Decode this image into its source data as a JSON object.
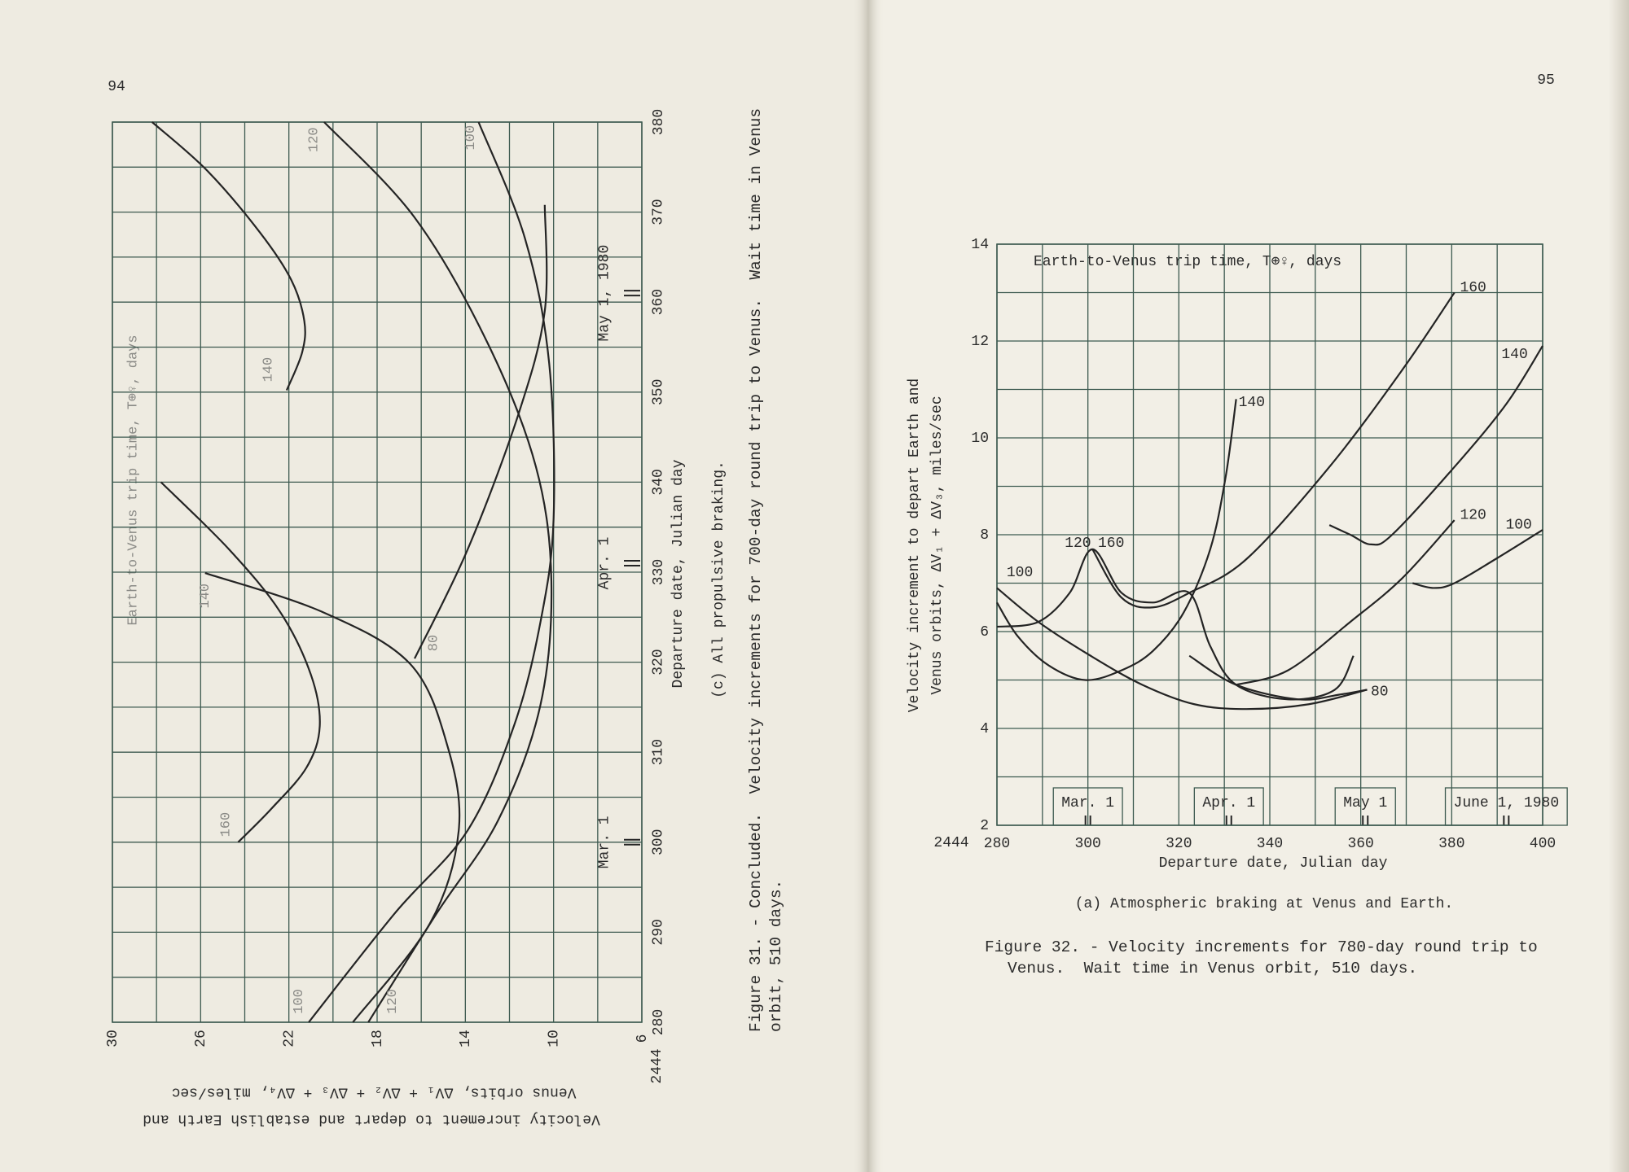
{
  "pages": {
    "left_number": "94",
    "right_number": "95"
  },
  "chart_data": [
    {
      "type": "line",
      "rotated": true,
      "inner_title": "Earth-to-Venus trip time, T⊕♀, days",
      "xlabel": "Departure date, Julian day",
      "x_prefix": "2444",
      "ylabel": [
        "Velocity increment to depart and establish Earth and",
        "Venus orbits, ΔV₁ + ΔV₂ + ΔV₃ + ΔV₄, miles/sec"
      ],
      "subtitle": "(c) All propulsive braking.",
      "caption": [
        "Figure 31. - Concluded.  Velocity increments for 700-day round trip to Venus.  Wait time in Venus",
        "orbit, 510 days."
      ],
      "markers": [
        {
          "label": "Mar. 1",
          "x": 300
        },
        {
          "label": "Apr. 1",
          "x": 331
        },
        {
          "label": "May 1, 1980",
          "x": 361
        }
      ],
      "xlim": [
        280,
        380
      ],
      "xticks": [
        280,
        290,
        300,
        310,
        320,
        330,
        340,
        350,
        360,
        370,
        380
      ],
      "ylim": [
        6,
        30
      ],
      "yticks": [
        6,
        10,
        14,
        18,
        22,
        26,
        30
      ],
      "grid": true,
      "color": "#242424",
      "grid_color": "#3d5a50",
      "series": [
        {
          "name": "140",
          "x": [
            380,
            374.6,
            367.7,
            362.5,
            357.9,
            354.4,
            350.2
          ],
          "values": [
            28.2,
            25.7,
            23.3,
            21.9,
            21.3,
            21.4,
            22.1
          ]
        },
        {
          "name": "160",
          "x": [
            340,
            332.5,
            325.6,
            318.6,
            312.9,
            308.3,
            303.7,
            300
          ],
          "values": [
            27.8,
            24.7,
            22.4,
            21.0,
            20.6,
            21.2,
            22.8,
            24.3
          ]
        },
        {
          "name": "140",
          "x": [
            329.9,
            325.6,
            319.8,
            310.6,
            301.3,
            291,
            280
          ],
          "values": [
            25.8,
            20.5,
            16.5,
            14.8,
            14.3,
            15.6,
            19.1
          ]
        },
        {
          "name": "80",
          "x": [
            320.4,
            332.5,
            347.5,
            359,
            370.8
          ],
          "values": [
            16.3,
            13.9,
            11.6,
            10.4,
            10.4
          ]
        },
        {
          "name": "100",
          "x": [
            380,
            367.1,
            353.2,
            335.9,
            324.4,
            312.9,
            301.3,
            292.1,
            280
          ],
          "values": [
            13.4,
            11.3,
            10.2,
            10.0,
            10.6,
            11.8,
            13.9,
            17.2,
            21.1
          ]
        },
        {
          "name": "120",
          "x": [
            380,
            369.4,
            355.5,
            341.7,
            329,
            315.2,
            302.5,
            292.1,
            280
          ],
          "values": [
            20.4,
            16.3,
            13.0,
            10.8,
            10.1,
            10.6,
            12.5,
            15.3,
            18.4
          ]
        }
      ]
    },
    {
      "type": "line",
      "rotated": false,
      "inner_title": "Earth-to-Venus trip time, T⊕♀, days",
      "xlabel": "Departure date, Julian day",
      "x_prefix": "2444",
      "ylabel": [
        "Velocity increment to depart Earth and",
        "Venus orbits, ΔV₁ + ΔV₃, miles/sec"
      ],
      "subtitle": "(a) Atmospheric braking at Venus and Earth.",
      "caption": [
        "Figure 32. - Velocity increments for 780-day round trip to",
        "Venus.  Wait time in Venus orbit, 510 days."
      ],
      "markers": [
        {
          "label": "Mar. 1",
          "x": 300
        },
        {
          "label": "Apr. 1",
          "x": 331
        },
        {
          "label": "May 1",
          "x": 361
        },
        {
          "label": "June 1, 1980",
          "x": 392
        }
      ],
      "xlim": [
        280,
        400
      ],
      "xticks": [
        280,
        300,
        320,
        340,
        360,
        380,
        400
      ],
      "ylim": [
        2,
        14
      ],
      "yticks": [
        2,
        4,
        6,
        8,
        10,
        12,
        14
      ],
      "grid": true,
      "color": "#242424",
      "grid_color": "#3d5a50",
      "series": [
        {
          "name": "100",
          "x": [
            280,
            289.1,
            300.6,
            312,
            323.4,
            334.9,
            348.6,
            361.4
          ],
          "values": [
            6.9,
            6.2,
            5.5,
            4.9,
            4.5,
            4.4,
            4.5,
            4.8
          ]
        },
        {
          "name": "140",
          "x": [
            280,
            284.6,
            291.4,
            299.4,
            307.4,
            314.3,
            321.1,
            326.9,
            330.3,
            332.6
          ],
          "values": [
            6.6,
            5.9,
            5.3,
            5.0,
            5.2,
            5.6,
            6.4,
            7.7,
            9.2,
            10.8
          ]
        },
        {
          "name": "120",
          "x": [
            280,
            289.1,
            296,
            301,
            307.4,
            314.3,
            322.3,
            326.9,
            332.6,
            344,
            354.3,
            358.4
          ],
          "values": [
            6.1,
            6.2,
            6.8,
            7.7,
            6.8,
            6.6,
            6.8,
            5.7,
            4.9,
            4.6,
            4.8,
            5.5
          ]
        },
        {
          "name": "160",
          "x": [
            301,
            307.4,
            314.3,
            322.3,
            334.9,
            353.1,
            369.1,
            380.6
          ],
          "values": [
            7.7,
            6.7,
            6.5,
            6.8,
            7.5,
            9.4,
            11.4,
            13.0
          ]
        },
        {
          "name": "80",
          "x": [
            322.3,
            332.6,
            346.3,
            355.4,
            361.4
          ],
          "values": [
            5.5,
            4.9,
            4.6,
            4.7,
            4.8
          ]
        },
        {
          "name": "140",
          "x": [
            353.1,
            357.7,
            362.3,
            366.9,
            380.6,
            392,
            400
          ],
          "values": [
            8.2,
            8.0,
            7.8,
            8.0,
            9.4,
            10.7,
            11.9
          ]
        },
        {
          "name": "120",
          "x": [
            332.6,
            344,
            357.7,
            369.1,
            380.6
          ],
          "values": [
            4.9,
            5.2,
            6.2,
            7.1,
            8.3
          ]
        },
        {
          "name": "100",
          "x": [
            371.4,
            376,
            380.6,
            389.7,
            400
          ],
          "values": [
            7.0,
            6.9,
            7.0,
            7.5,
            8.1
          ]
        }
      ]
    }
  ]
}
